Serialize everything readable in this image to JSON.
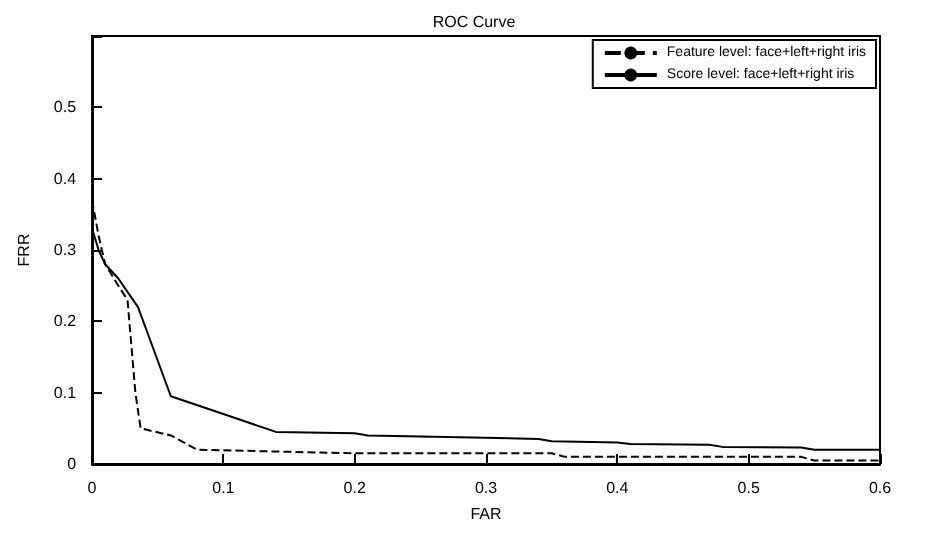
{
  "chart_data": {
    "type": "line",
    "title": "ROC Curve",
    "xlabel": "FAR",
    "ylabel": "FRR",
    "xlim": [
      0,
      0.6
    ],
    "xticks": [
      0,
      0.1,
      0.2,
      0.3,
      0.4,
      0.5,
      0.6
    ],
    "ylim": [
      0,
      0.6
    ],
    "yticks": [
      0,
      0.1,
      0.2,
      0.3,
      0.4,
      0.5,
      {
        "value": 0.6,
        "label": null
      }
    ],
    "grid": false,
    "legend": "top right",
    "marker": "none",
    "series": [
      {
        "name": "Feature level: face+left+right iris",
        "color": "#000000",
        "line_style": "dashed",
        "x": [
          0,
          0.005,
          0.01,
          0.02,
          0.027,
          0.033,
          0.037,
          0.06,
          0.08,
          0.2,
          0.35,
          0.36,
          0.54,
          0.55,
          0.6
        ],
        "values": [
          0.37,
          0.32,
          0.28,
          0.25,
          0.23,
          0.1,
          0.05,
          0.04,
          0.02,
          0.015,
          0.015,
          0.01,
          0.01,
          0.005,
          0.005
        ]
      },
      {
        "name": "Score level: face+left+right iris",
        "color": "#000000",
        "line_style": "solid",
        "x": [
          0,
          0.005,
          0.01,
          0.02,
          0.035,
          0.045,
          0.06,
          0.1,
          0.14,
          0.2,
          0.21,
          0.27,
          0.34,
          0.35,
          0.4,
          0.41,
          0.47,
          0.48,
          0.54,
          0.55,
          0.6
        ],
        "values": [
          0.33,
          0.3,
          0.28,
          0.26,
          0.22,
          0.17,
          0.095,
          0.07,
          0.045,
          0.043,
          0.04,
          0.038,
          0.035,
          0.032,
          0.03,
          0.028,
          0.027,
          0.024,
          0.023,
          0.02,
          0.02
        ]
      }
    ]
  }
}
